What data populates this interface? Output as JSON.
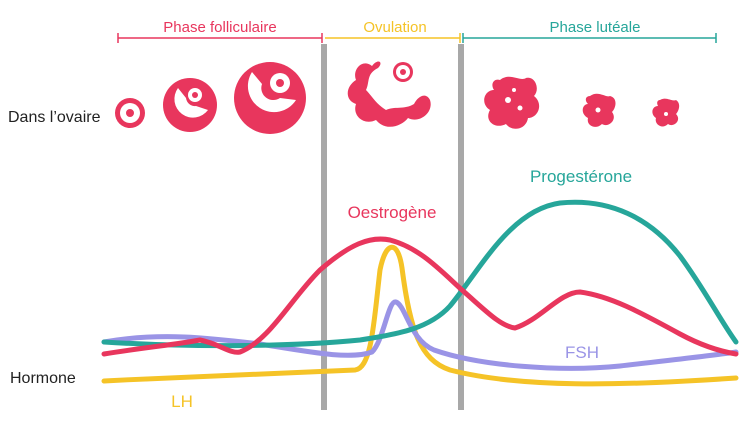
{
  "phases": [
    {
      "label": "Phase folliculaire",
      "color": "#e8365d"
    },
    {
      "label": "Ovulation",
      "color": "#f5c327"
    },
    {
      "label": "Phase lutéale",
      "color": "#26a69a"
    }
  ],
  "rows": {
    "ovary_label": "Dans l’ovaire",
    "hormone_label": "Hormone"
  },
  "hormones": [
    {
      "name": "Oestrogène",
      "color": "#e8365d"
    },
    {
      "name": "Progestérone",
      "color": "#26a69a"
    },
    {
      "name": "FSH",
      "color": "#9a94e6"
    },
    {
      "name": "LH",
      "color": "#f5c327"
    }
  ],
  "divider_color": "#a8a8a8"
}
